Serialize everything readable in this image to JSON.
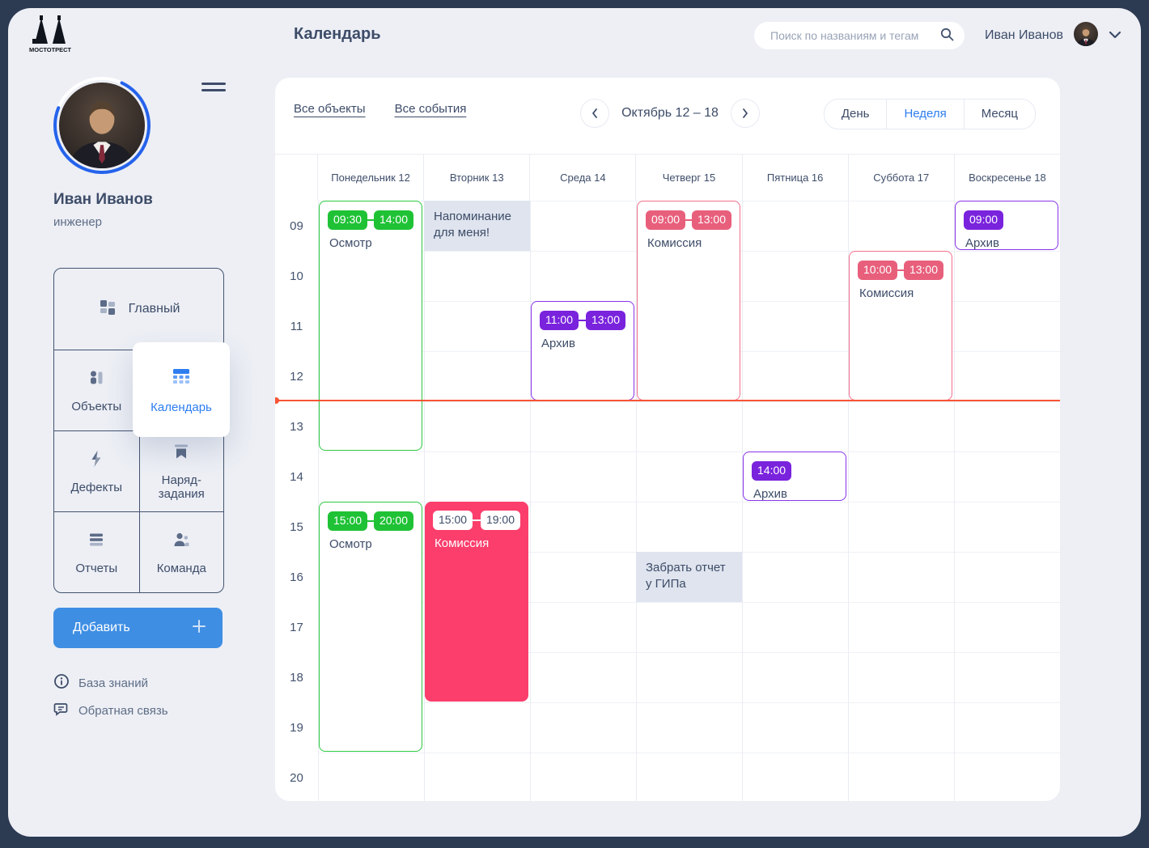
{
  "app": {
    "logo_text": "МОСТОТРЕСТ",
    "page_title": "Календарь"
  },
  "header": {
    "search_placeholder": "Поиск по названиям и тегам",
    "user_name": "Иван Иванов"
  },
  "profile": {
    "name": "Иван Иванов",
    "role": "инженер"
  },
  "sidebar": {
    "items": [
      {
        "label": "Главный"
      },
      {
        "label": "Объекты"
      },
      {
        "label": "Календарь",
        "active": true
      },
      {
        "label": "Дефекты"
      },
      {
        "label": "Наряд-задания"
      },
      {
        "label": "Отчеты"
      },
      {
        "label": "Команда"
      }
    ],
    "add_button": "Добавить",
    "links": [
      {
        "label": "База знаний"
      },
      {
        "label": "Обратная связь"
      }
    ]
  },
  "toolbar": {
    "filters": [
      "Все объекты",
      "Все события"
    ],
    "period": "Октябрь 12 – 18",
    "views": [
      "День",
      "Неделя",
      "Месяц"
    ],
    "active_view": "Неделя"
  },
  "calendar": {
    "days": [
      "Понедельник 12",
      "Вторник 13",
      "Среда 14",
      "Четверг 15",
      "Пятница 16",
      "Суббота 17",
      "Воскресенье 18"
    ],
    "hours": [
      "09",
      "10",
      "11",
      "12",
      "13",
      "14",
      "15",
      "16",
      "17",
      "18",
      "19",
      "20"
    ],
    "palette": {
      "green": {
        "badge": "#1fc235",
        "border": "#2cc83f"
      },
      "pink": {
        "badge": "#e85f7c",
        "border": "#f2718d"
      },
      "purple": {
        "badge": "#7a23dd",
        "border": "#8833e8"
      },
      "rose": {
        "fill": "#fb3e6c",
        "badge_bg": "#ffffff",
        "badge_text": "#3d4c68"
      },
      "note_bg": "#dfe4ee",
      "now_line": "#f85433"
    },
    "events": [
      {
        "day": 0,
        "type": "outlined",
        "color": "green",
        "start": "09:30",
        "end": "14:00",
        "title": "Осмотр"
      },
      {
        "day": 0,
        "type": "outlined",
        "color": "green",
        "start": "15:00",
        "end": "20:00",
        "title": "Осмотр"
      },
      {
        "day": 1,
        "type": "note",
        "start": "09:00",
        "end": "10:00",
        "title": "Напоминание для меня!"
      },
      {
        "day": 1,
        "type": "filled",
        "color": "rose",
        "start": "15:00",
        "end": "19:00",
        "title": "Комиссия"
      },
      {
        "day": 2,
        "type": "outlined",
        "color": "purple",
        "start": "11:00",
        "end": "13:00",
        "title": "Архив"
      },
      {
        "day": 3,
        "type": "outlined",
        "color": "pink",
        "start": "09:00",
        "end": "13:00",
        "title": "Комиссия"
      },
      {
        "day": 3,
        "type": "note",
        "start": "16:00",
        "end": "17:00",
        "title": "Забрать отчет у ГИПа"
      },
      {
        "day": 4,
        "type": "outlined",
        "color": "purple",
        "start": "14:00",
        "end": null,
        "title": "Архив"
      },
      {
        "day": 5,
        "type": "outlined",
        "color": "pink",
        "start": "10:00",
        "end": "13:00",
        "title": "Комиссия"
      },
      {
        "day": 6,
        "type": "outlined",
        "color": "purple",
        "start": "09:00",
        "end": null,
        "title": "Архив"
      }
    ]
  }
}
